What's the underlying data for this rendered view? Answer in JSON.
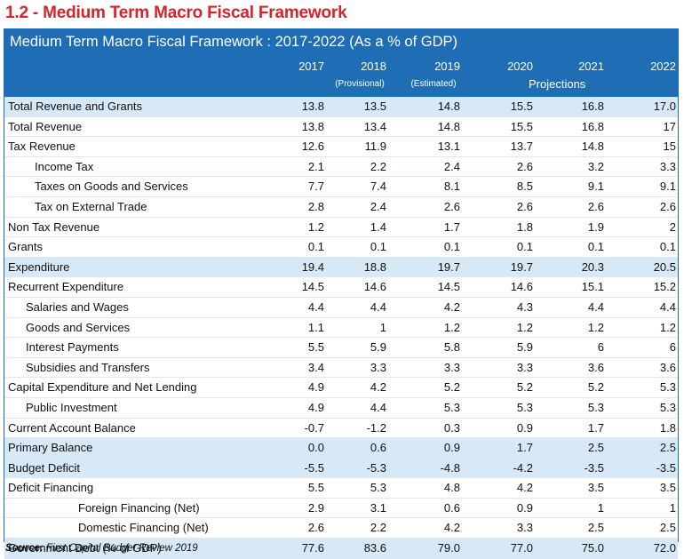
{
  "heading": "1.2 - Medium Term Macro Fiscal Framework",
  "table": {
    "title": "Medium Term Macro Fiscal Framework : 2017-2022 (As a % of GDP)",
    "years": [
      "2017",
      "2018",
      "2019",
      "2020",
      "2021",
      "2022"
    ],
    "year_notes": [
      "",
      "(Provisional)",
      "(Estimated)",
      "",
      "",
      ""
    ],
    "projections_label": "Projections",
    "rows": [
      {
        "label": "Total Revenue and Grants",
        "indent": 0,
        "highlight": true,
        "values": [
          "13.8",
          "13.5",
          "14.8",
          "15.5",
          "16.8",
          "17.0"
        ]
      },
      {
        "label": "Total Revenue",
        "indent": 0,
        "highlight": false,
        "values": [
          "13.8",
          "13.4",
          "14.8",
          "15.5",
          "16.8",
          "17"
        ]
      },
      {
        "label": "Tax Revenue",
        "indent": 0,
        "highlight": false,
        "values": [
          "12.6",
          "11.9",
          "13.1",
          "13.7",
          "14.8",
          "15"
        ]
      },
      {
        "label": "Income Tax",
        "indent": 2,
        "highlight": false,
        "values": [
          "2.1",
          "2.2",
          "2.4",
          "2.6",
          "3.2",
          "3.3"
        ]
      },
      {
        "label": "Taxes on Goods and Services",
        "indent": 2,
        "highlight": false,
        "values": [
          "7.7",
          "7.4",
          "8.1",
          "8.5",
          "9.1",
          "9.1"
        ]
      },
      {
        "label": "Tax on External Trade",
        "indent": 2,
        "highlight": false,
        "values": [
          "2.8",
          "2.4",
          "2.6",
          "2.6",
          "2.6",
          "2.6"
        ]
      },
      {
        "label": "Non Tax Revenue",
        "indent": 0,
        "highlight": false,
        "values": [
          "1.2",
          "1.4",
          "1.7",
          "1.8",
          "1.9",
          "2"
        ]
      },
      {
        "label": "Grants",
        "indent": 0,
        "highlight": false,
        "values": [
          "0.1",
          "0.1",
          "0.1",
          "0.1",
          "0.1",
          "0.1"
        ]
      },
      {
        "label": "Expenditure",
        "indent": 0,
        "highlight": true,
        "values": [
          "19.4",
          "18.8",
          "19.7",
          "19.7",
          "20.3",
          "20.5"
        ]
      },
      {
        "label": "Recurrent Expenditure",
        "indent": 0,
        "highlight": false,
        "values": [
          "14.5",
          "14.6",
          "14.5",
          "14.6",
          "15.1",
          "15.2"
        ]
      },
      {
        "label": "Salaries and Wages",
        "indent": 1,
        "highlight": false,
        "values": [
          "4.4",
          "4.4",
          "4.2",
          "4.3",
          "4.4",
          "4.4"
        ]
      },
      {
        "label": "Goods and Services",
        "indent": 1,
        "highlight": false,
        "values": [
          "1.1",
          "1",
          "1.2",
          "1.2",
          "1.2",
          "1.2"
        ]
      },
      {
        "label": "Interest Payments",
        "indent": 1,
        "highlight": false,
        "values": [
          "5.5",
          "5.9",
          "5.8",
          "5.9",
          "6",
          "6"
        ]
      },
      {
        "label": "Subsidies and Transfers",
        "indent": 1,
        "highlight": false,
        "values": [
          "3.4",
          "3.3",
          "3.3",
          "3.3",
          "3.6",
          "3.6"
        ]
      },
      {
        "label": "Capital Expenditure and Net Lending",
        "indent": 0,
        "highlight": false,
        "values": [
          "4.9",
          "4.2",
          "5.2",
          "5.2",
          "5.2",
          "5.3"
        ]
      },
      {
        "label": "Public Investment",
        "indent": 1,
        "highlight": false,
        "values": [
          "4.9",
          "4.4",
          "5.3",
          "5.3",
          "5.3",
          "5.3"
        ]
      },
      {
        "label": "Current Account Balance",
        "indent": 0,
        "highlight": false,
        "values": [
          "-0.7",
          "-1.2",
          "0.3",
          "0.9",
          "1.7",
          "1.8"
        ]
      },
      {
        "label": "Primary Balance",
        "indent": 0,
        "highlight": true,
        "values": [
          "0.0",
          "0.6",
          "0.9",
          "1.7",
          "2.5",
          "2.5"
        ]
      },
      {
        "label": "Budget Deficit",
        "indent": 0,
        "highlight": true,
        "values": [
          "-5.5",
          "-5.3",
          "-4.8",
          "-4.2",
          "-3.5",
          "-3.5"
        ]
      },
      {
        "label": "Deficit Financing",
        "indent": 0,
        "highlight": false,
        "values": [
          "5.5",
          "5.3",
          "4.8",
          "4.2",
          "3.5",
          "3.5"
        ]
      },
      {
        "label": "Foreign Financing (Net)",
        "indent": 3,
        "highlight": false,
        "values": [
          "2.9",
          "3.1",
          "0.6",
          "0.9",
          "1",
          "1"
        ]
      },
      {
        "label": "Domestic Financing (Net)",
        "indent": 3,
        "highlight": false,
        "values": [
          "2.6",
          "2.2",
          "4.2",
          "3.3",
          "2.5",
          "2.5"
        ]
      },
      {
        "label": "Government Debt (% of GDP)",
        "indent": 0,
        "highlight": true,
        "values": [
          "77.6",
          "83.6",
          "79.0",
          "77.0",
          "75.0",
          "72.0"
        ]
      }
    ]
  },
  "source": {
    "prefix": "Source:",
    "text": " First Capital Budget Review 2019"
  }
}
